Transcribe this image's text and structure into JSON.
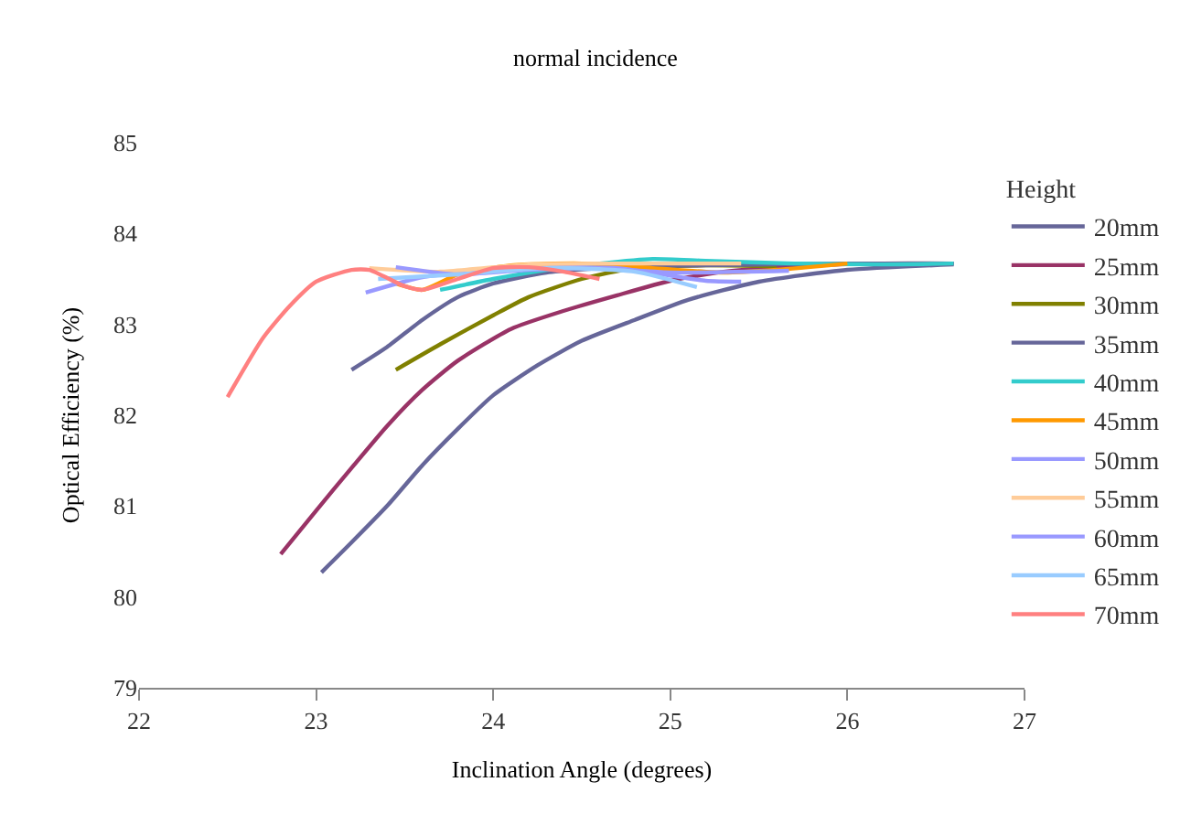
{
  "chart_data": {
    "type": "line",
    "title": "normal incidence",
    "xlabel": "Inclination Angle (degrees)",
    "ylabel": "Optical Efficiency (%)",
    "legend_title": "Height",
    "legend": "right",
    "xlim": [
      22,
      27
    ],
    "xticks": [
      22,
      23,
      24,
      25,
      26,
      27
    ],
    "ylim": [
      79,
      85
    ],
    "yticks": [
      79,
      80,
      81,
      82,
      83,
      84,
      85
    ],
    "grid": false,
    "series": [
      {
        "name": "20mm",
        "color": "#666699",
        "x": [
          23.03,
          23.2,
          23.4,
          23.6,
          23.8,
          24.0,
          24.25,
          24.5,
          24.8,
          25.1,
          25.5,
          26.0,
          26.6
        ],
        "values": [
          80.27,
          80.6,
          81.0,
          81.45,
          81.85,
          82.22,
          82.55,
          82.82,
          83.05,
          83.27,
          83.47,
          83.6,
          83.66
        ]
      },
      {
        "name": "25mm",
        "color": "#993366",
        "x": [
          22.8,
          23.0,
          23.2,
          23.4,
          23.6,
          23.8,
          24.1,
          24.4,
          24.7,
          25.0,
          25.3,
          25.7,
          26.2,
          26.6
        ],
        "values": [
          80.47,
          80.95,
          81.42,
          81.88,
          82.28,
          82.6,
          82.95,
          83.15,
          83.32,
          83.48,
          83.58,
          83.64,
          83.67,
          83.67
        ]
      },
      {
        "name": "30mm",
        "color": "#808000",
        "x": [
          23.45,
          23.7,
          24.0,
          24.2,
          24.5,
          24.8,
          25.2,
          25.6
        ],
        "values": [
          82.5,
          82.78,
          83.1,
          83.3,
          83.5,
          83.62,
          83.65,
          83.64
        ]
      },
      {
        "name": "35mm",
        "color": "#666699",
        "x": [
          23.2,
          23.4,
          23.6,
          23.8,
          24.0,
          24.3,
          24.7,
          25.2,
          26.0,
          26.6
        ],
        "values": [
          82.5,
          82.75,
          83.05,
          83.3,
          83.45,
          83.57,
          83.63,
          83.65,
          83.67,
          83.67
        ]
      },
      {
        "name": "40mm",
        "color": "#33cccc",
        "x": [
          23.7,
          24.0,
          24.3,
          24.6,
          24.9,
          25.2,
          25.7,
          26.2,
          26.6
        ],
        "values": [
          83.38,
          83.5,
          83.6,
          83.67,
          83.72,
          83.7,
          83.67,
          83.66,
          83.67
        ]
      },
      {
        "name": "45mm",
        "color": "#ff9900",
        "x": [
          23.45,
          23.6,
          23.8,
          24.1,
          24.5,
          24.9,
          25.3,
          25.6,
          26.0
        ],
        "values": [
          83.45,
          83.38,
          83.55,
          83.65,
          83.67,
          83.62,
          83.57,
          83.6,
          83.67
        ]
      },
      {
        "name": "50mm",
        "color": "#9999ff",
        "x": [
          23.28,
          23.6,
          24.0,
          24.5,
          25.0,
          25.67
        ],
        "values": [
          83.35,
          83.52,
          83.6,
          83.63,
          83.57,
          83.59
        ]
      },
      {
        "name": "55mm",
        "color": "#ffcc99",
        "x": [
          23.3,
          23.7,
          24.2,
          24.8,
          25.4
        ],
        "values": [
          83.62,
          83.58,
          83.66,
          83.67,
          83.67
        ]
      },
      {
        "name": "60mm",
        "color": "#9999ff",
        "x": [
          23.45,
          23.8,
          24.2,
          24.7,
          25.2,
          25.4
        ],
        "values": [
          83.63,
          83.55,
          83.6,
          83.62,
          83.48,
          83.47
        ]
      },
      {
        "name": "65mm",
        "color": "#99ccff",
        "x": [
          23.35,
          23.8,
          24.3,
          24.8,
          25.15
        ],
        "values": [
          83.5,
          83.55,
          83.62,
          83.58,
          83.41
        ]
      },
      {
        "name": "70mm",
        "color": "#ff8080",
        "x": [
          22.5,
          22.7,
          22.85,
          23.0,
          23.2,
          23.3,
          23.5,
          23.6,
          23.8,
          24.0,
          24.2,
          24.4,
          24.6
        ],
        "values": [
          82.2,
          82.85,
          83.2,
          83.47,
          83.6,
          83.6,
          83.42,
          83.38,
          83.5,
          83.62,
          83.63,
          83.58,
          83.5
        ]
      }
    ]
  }
}
